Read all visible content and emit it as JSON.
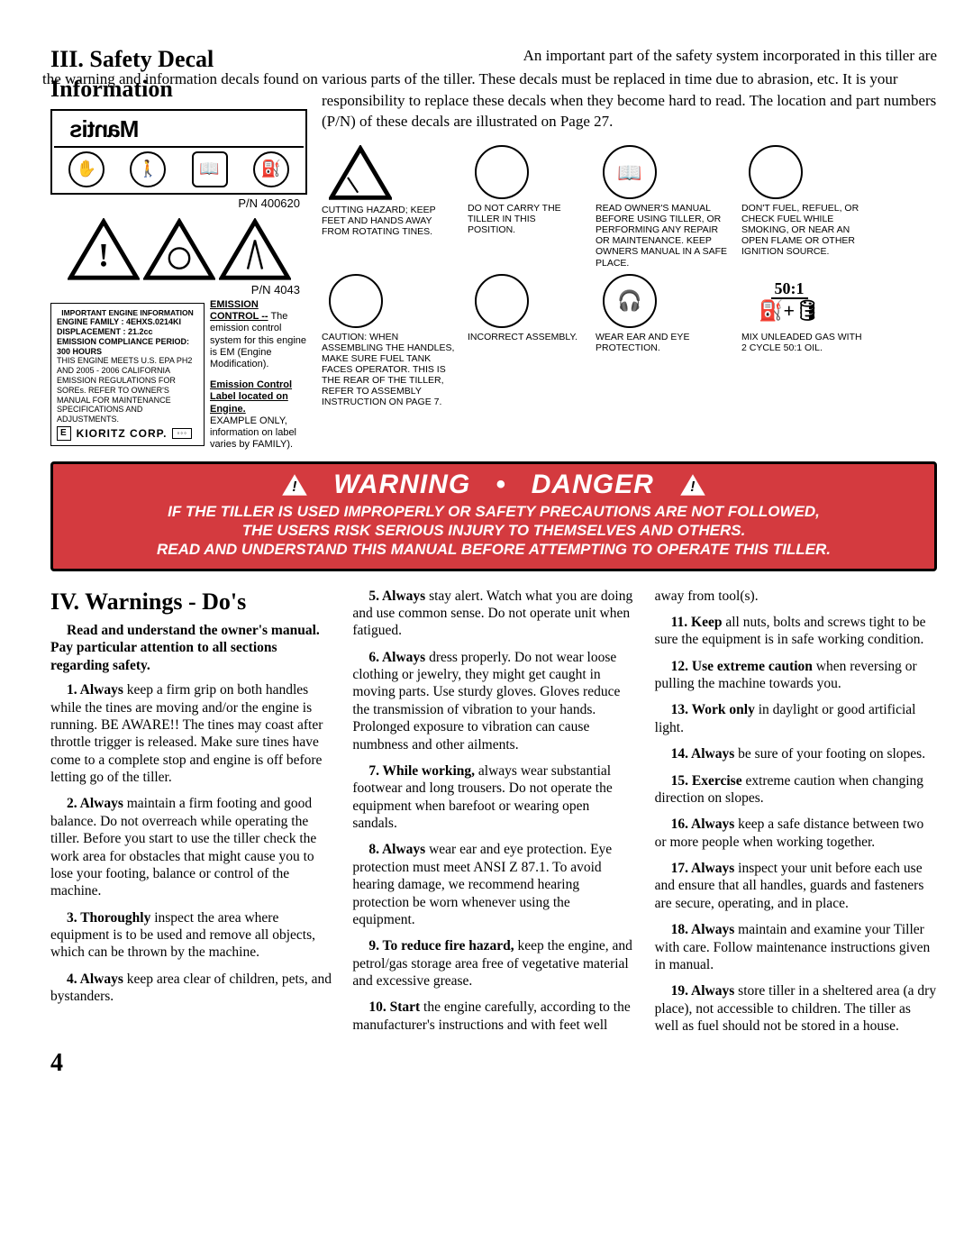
{
  "page_number": "4",
  "section3": {
    "title": "III. Safety   Decal Information",
    "intro_first": "An important part of the safety system incorporated in this tiller are",
    "intro_rest": "the warning and information decals found on various parts of the tiller. These decals must be replaced in time due to abrasion, etc. It is your responsibility to replace these decals when they become hard to read. The location and part numbers (P/N) of these decals are illustrated on Page 27.",
    "pn1": "P/N 400620",
    "pn2": "P/N 4043",
    "mantis_label": "Mantis",
    "engine_info": {
      "header": "IMPORTANT  ENGINE  INFORMATION",
      "l1": "ENGINE FAMILY : 4EHXS.0214KI DISPLACEMENT : 21.2cc",
      "l2": "EMISSION COMPLIANCE PERIOD:  300 HOURS",
      "l3": "THIS ENGINE MEETS U.S. EPA PH2 AND 2005 - 2006  CALIFORNIA EMISSION REGULATIONS FOR SOREs. REFER TO OWNER'S MANUAL FOR MAINTENANCE SPECIFICATIONS AND ADJUSTMENTS.",
      "corp": "KIORITZ  CORP.",
      "e": "E"
    },
    "em1": {
      "h": "EMISSION CONTROL --",
      "t": "The emission control system for this engine is EM (Engine Modification)."
    },
    "em2": {
      "h": "Emission Control Label located on Engine.",
      "t": "EXAMPLE ONLY, information on label varies by FAMILY)."
    },
    "grid": [
      {
        "icon": "tri",
        "text": "CUTTING HAZARD; KEEP FEET AND HANDS  AWAY FROM ROTATING TINES."
      },
      {
        "icon": "circ",
        "text": "DO   NOT CARRY THE TILLER IN THIS POSITION."
      },
      {
        "icon": "circ",
        "glyph": "📖",
        "text": "READ OWNER'S MANUAL BEFORE USING TILLER, OR PERFORMING ANY REPAIR OR MAINTENANCE. KEEP OWNERS MANUAL IN A SAFE PLACE."
      },
      {
        "icon": "circ",
        "text": "DON'T FUEL, REFUEL, OR CHECK FUEL WHILE SMOKING, OR NEAR AN OPEN FLAME OR OTHER IGNITION SOURCE."
      },
      {
        "icon": "circ",
        "text": "CAUTION:  WHEN ASSEMBLING THE HANDLES, MAKE SURE FUEL TANK FACES OPERATOR. THIS IS THE REAR OF THE TILLER, REFER TO ASSEMBLY INSTRUCTION ON PAGE 7."
      },
      {
        "icon": "circ",
        "text": "INCORRECT ASSEMBLY."
      },
      {
        "icon": "circ",
        "glyph": "🎧",
        "text": "WEAR EAR AND EYE PROTECTION."
      },
      {
        "icon": "plain",
        "ratio": "50:1",
        "text": "MIX UNLEADED GAS WITH 2  CYCLE 50:1 OIL."
      }
    ]
  },
  "banner": {
    "line1a": "WARNING",
    "bullet": "•",
    "line1b": "DANGER",
    "body1": "IF THE TILLER IS USED IMPROPERLY OR SAFETY PRECAUTIONS ARE NOT FOLLOWED,",
    "body2": "THE USERS RISK SERIOUS INJURY TO THEMSELVES AND OTHERS.",
    "body3": "READ AND UNDERSTAND THIS MANUAL BEFORE ATTEMPTING TO OPERATE THIS TILLER."
  },
  "section4": {
    "title": "IV. Warnings - Do's",
    "sub": "Read and understand the owner's manual. Pay particular attention to all sections regarding safety.",
    "items": [
      {
        "b": "1. Always",
        "t": " keep a firm grip on both handles while the tines are moving and/or the engine is running. BE AWARE!! The tines may coast after throttle trigger is released. Make sure tines have come to a complete stop and engine is off before letting go of the tiller."
      },
      {
        "b": "2. Always",
        "t": " maintain a firm footing and good balance. Do not overreach while operating the tiller. Before you start to use the tiller check the work area for obstacles that might cause you to lose your footing, balance or control of the machine."
      },
      {
        "b": "3. Thoroughly",
        "t": " inspect the area where equipment is to be used and remove all objects, which can be thrown by the machine."
      },
      {
        "b": "4. Always",
        "t": " keep area clear of children, pets, and bystanders."
      },
      {
        "b": "5. Always",
        "t": " stay alert. Watch what you are doing and use common sense. Do not operate unit when fatigued."
      },
      {
        "b": "6. Always",
        "t": " dress properly. Do not wear loose clothing or jewelry, they might get caught in moving parts. Use sturdy gloves. Gloves reduce the transmission of vibration to your hands. Prolonged exposure to vibration can cause numbness and other ailments."
      },
      {
        "b": "7. While working,",
        "t": " always wear substantial footwear and long trousers. Do not operate the equipment when barefoot or wearing open sandals."
      },
      {
        "b": "8. Always",
        "t": " wear ear and eye protection. Eye protection must meet ANSI Z 87.1. To avoid hearing damage, we recommend hearing protection be worn whenever using the equipment."
      },
      {
        "b": "9. To reduce fire hazard,",
        "t": " keep the engine, and petrol/gas storage area free of vegetative material and excessive grease."
      },
      {
        "b": "10. Start",
        "t": " the engine carefully, according to the manufacturer's instructions and with feet well away from tool(s)."
      },
      {
        "b": "11. Keep",
        "t": " all nuts, bolts and screws tight to be sure the equipment is in safe working condition."
      },
      {
        "b": "12. Use extreme caution",
        "t": " when reversing or pulling the machine towards you."
      },
      {
        "b": "13. Work only",
        "t": " in daylight or good artificial light."
      },
      {
        "b": "14. Always",
        "t": " be sure of your footing on slopes."
      },
      {
        "b": "15. Exercise",
        "t": " extreme caution when changing direction on slopes."
      },
      {
        "b": "16. Always",
        "t": " keep a safe distance between two or more people when working together."
      },
      {
        "b": "17. Always",
        "t": " inspect your unit before each use and ensure that all handles, guards and fasteners are secure, operating, and in place."
      },
      {
        "b": "18. Always",
        "t": " maintain and examine your Tiller with care. Follow maintenance instructions given in manual."
      },
      {
        "b": "19. Always",
        "t": " store tiller in a sheltered area (a dry place), not accessible to children. The tiller as well as fuel should not be stored in a house."
      }
    ]
  }
}
